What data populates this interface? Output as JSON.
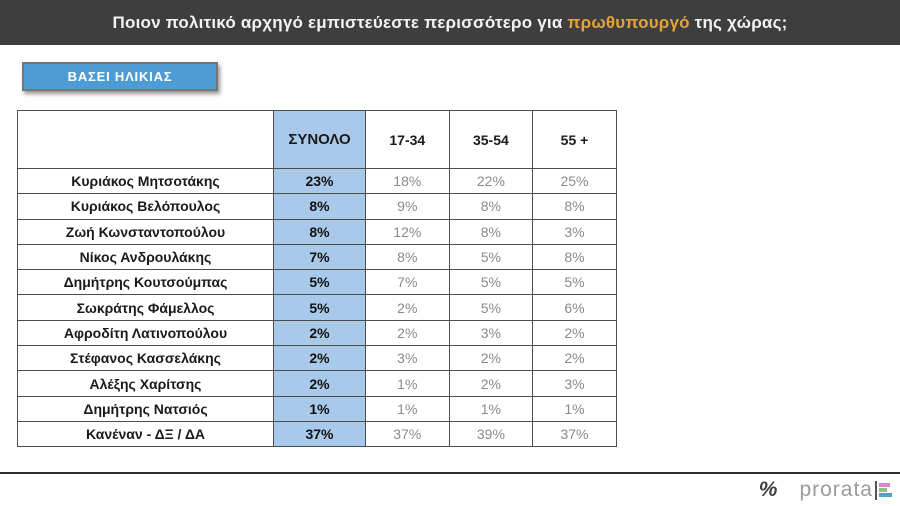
{
  "header": {
    "title_prefix": "Ποιον πολιτικό αρχηγό εμπιστεύεστε περισσότερο για ",
    "title_highlight": "πρωθυπουργό",
    "title_suffix": " της χώρας;"
  },
  "filter_button": {
    "label": "ΒΑΣΕΙ ΗΛΙΚΙΑΣ"
  },
  "chart_data": {
    "type": "table",
    "title": "Ποιον πολιτικό αρχηγό εμπιστεύεστε περισσότερο για πρωθυπουργό της χώρας;",
    "columns": [
      "",
      "ΣΥΝΟΛΟ",
      "17-34",
      "35-54",
      "55 +"
    ],
    "rows": [
      {
        "name": "Κυριάκος Μητσοτάκης",
        "values": [
          "23%",
          "18%",
          "22%",
          "25%"
        ]
      },
      {
        "name": "Κυριάκος Βελόπουλος",
        "values": [
          "8%",
          "9%",
          "8%",
          "8%"
        ]
      },
      {
        "name": "Ζωή Κωνσταντοπούλου",
        "values": [
          "8%",
          "12%",
          "8%",
          "3%"
        ]
      },
      {
        "name": "Νίκος Ανδρουλάκης",
        "values": [
          "7%",
          "8%",
          "5%",
          "8%"
        ]
      },
      {
        "name": "Δημήτρης Κουτσούμπας",
        "values": [
          "5%",
          "7%",
          "5%",
          "5%"
        ]
      },
      {
        "name": "Σωκράτης Φάμελλος",
        "values": [
          "5%",
          "2%",
          "5%",
          "6%"
        ]
      },
      {
        "name": "Αφροδίτη Λατινοπούλου",
        "values": [
          "2%",
          "2%",
          "3%",
          "2%"
        ]
      },
      {
        "name": "Στέφανος Κασσελάκης",
        "values": [
          "2%",
          "3%",
          "2%",
          "2%"
        ]
      },
      {
        "name": "Αλέξης Χαρίτσης",
        "values": [
          "2%",
          "1%",
          "2%",
          "3%"
        ]
      },
      {
        "name": "Δημήτρης Νατσιός",
        "values": [
          "1%",
          "1%",
          "1%",
          "1%"
        ]
      },
      {
        "name": "Κανέναν -  ΔΞ / ΔΑ",
        "values": [
          "37%",
          "37%",
          "39%",
          "37%"
        ]
      }
    ]
  },
  "footer": {
    "percent_glyph": "%",
    "brand": "prorata"
  },
  "colors": {
    "header_bg": "#3e3e3e",
    "highlight": "#e2a33c",
    "button_blue": "#4e9cd6",
    "cell_blue": "#a8c9e9"
  }
}
